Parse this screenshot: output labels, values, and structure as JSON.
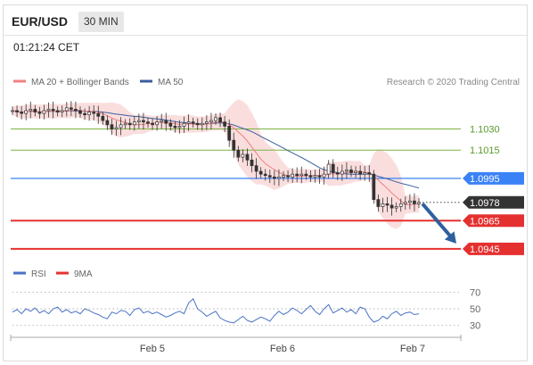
{
  "header": {
    "pair": "EUR/USD",
    "timeframe": "30 MIN"
  },
  "timestamp": "01:21:24 CET",
  "research_credit": "Research © 2020 Trading Central",
  "colors": {
    "ma20": "#f08080",
    "bollinger": "#f7c8c8",
    "ma50": "#3a5fa0",
    "candle": "#333333",
    "support_line": "#e53030",
    "pivot_line": "#3b82f6",
    "resistance_line": "#7cb342",
    "resistance_label": "#5a9a2a",
    "rsi": "#4a72c4",
    "rsi_9ma": "#e53030",
    "arrow": "#2f5f9e",
    "current_tag": "#333333"
  },
  "chart_data": [
    {
      "type": "candlestick",
      "legend": [
        {
          "name": "MA 20 + Bollinger Bands",
          "color": "#f08080"
        },
        {
          "name": "MA 50",
          "color": "#3a5fa0"
        }
      ],
      "x_tick_labels": [
        "Feb 5",
        "Feb 6",
        "Feb 7"
      ],
      "ylim": [
        1.0938,
        1.1055
      ],
      "close_series": [
        1.1043,
        1.1042,
        1.1041,
        1.1043,
        1.1044,
        1.1042,
        1.1041,
        1.1043,
        1.1044,
        1.1043,
        1.1042,
        1.1043,
        1.1045,
        1.1044,
        1.1043,
        1.1041,
        1.104,
        1.1042,
        1.1041,
        1.1039,
        1.1036,
        1.1033,
        1.103,
        1.1031,
        1.1033,
        1.1034,
        1.1033,
        1.1035,
        1.1036,
        1.1035,
        1.1034,
        1.1033,
        1.1035,
        1.1036,
        1.1034,
        1.1032,
        1.1031,
        1.1032,
        1.1034,
        1.1035,
        1.1034,
        1.1033,
        1.1034,
        1.1035,
        1.1036,
        1.1038,
        1.1035,
        1.1032,
        1.1022,
        1.1015,
        1.101,
        1.1012,
        1.1008,
        1.1004,
        1.1,
        1.0998,
        1.0997,
        1.0996,
        1.0995,
        1.0996,
        1.0997,
        1.0996,
        1.0998,
        1.0997,
        1.0998,
        1.0997,
        1.0996,
        1.0997,
        1.0996,
        1.0998,
        1.1005,
        1.0999,
        1.0998,
        1.1,
        1.1001,
        1.0999,
        1.1,
        1.0998,
        1.0999,
        1.0998,
        1.098,
        1.0975,
        1.0977,
        1.0976,
        1.0974,
        1.0975,
        1.0977,
        1.0978,
        1.0979,
        1.0977,
        1.0978
      ],
      "levels": [
        {
          "label": "1.1030",
          "value": 1.103,
          "kind": "resistance"
        },
        {
          "label": "1.1015",
          "value": 1.1015,
          "kind": "resistance"
        },
        {
          "label": "1.0995",
          "value": 1.0995,
          "kind": "pivot"
        },
        {
          "label": "1.0978",
          "value": 1.0978,
          "kind": "current"
        },
        {
          "label": "1.0965",
          "value": 1.0965,
          "kind": "support"
        },
        {
          "label": "1.0945",
          "value": 1.0945,
          "kind": "support"
        }
      ],
      "projection": {
        "from": 1.0977,
        "to": 1.0945,
        "direction": "down"
      }
    },
    {
      "type": "line",
      "legend": [
        {
          "name": "RSI",
          "color": "#4a72c4"
        },
        {
          "name": "9MA",
          "color": "#e53030"
        }
      ],
      "ylim": [
        20,
        80
      ],
      "y_tick_labels": [
        "70",
        "50",
        "30"
      ],
      "y_ticks": [
        70,
        50,
        30
      ],
      "rsi_values": [
        46,
        49,
        44,
        50,
        47,
        51,
        45,
        48,
        44,
        50,
        52,
        46,
        49,
        45,
        47,
        44,
        50,
        48,
        45,
        43,
        40,
        38,
        46,
        44,
        48,
        47,
        42,
        49,
        51,
        45,
        47,
        44,
        46,
        43,
        40,
        42,
        45,
        47,
        44,
        57,
        62,
        50,
        46,
        41,
        44,
        47,
        39,
        36,
        34,
        33,
        37,
        41,
        36,
        34,
        37,
        40,
        38,
        35,
        42,
        47,
        43,
        46,
        51,
        48,
        44,
        49,
        54,
        47,
        43,
        50,
        55,
        45,
        48,
        51,
        46,
        49,
        44,
        52,
        50,
        40,
        34,
        36,
        41,
        38,
        44,
        47,
        42,
        45,
        46,
        43,
        44
      ]
    }
  ]
}
